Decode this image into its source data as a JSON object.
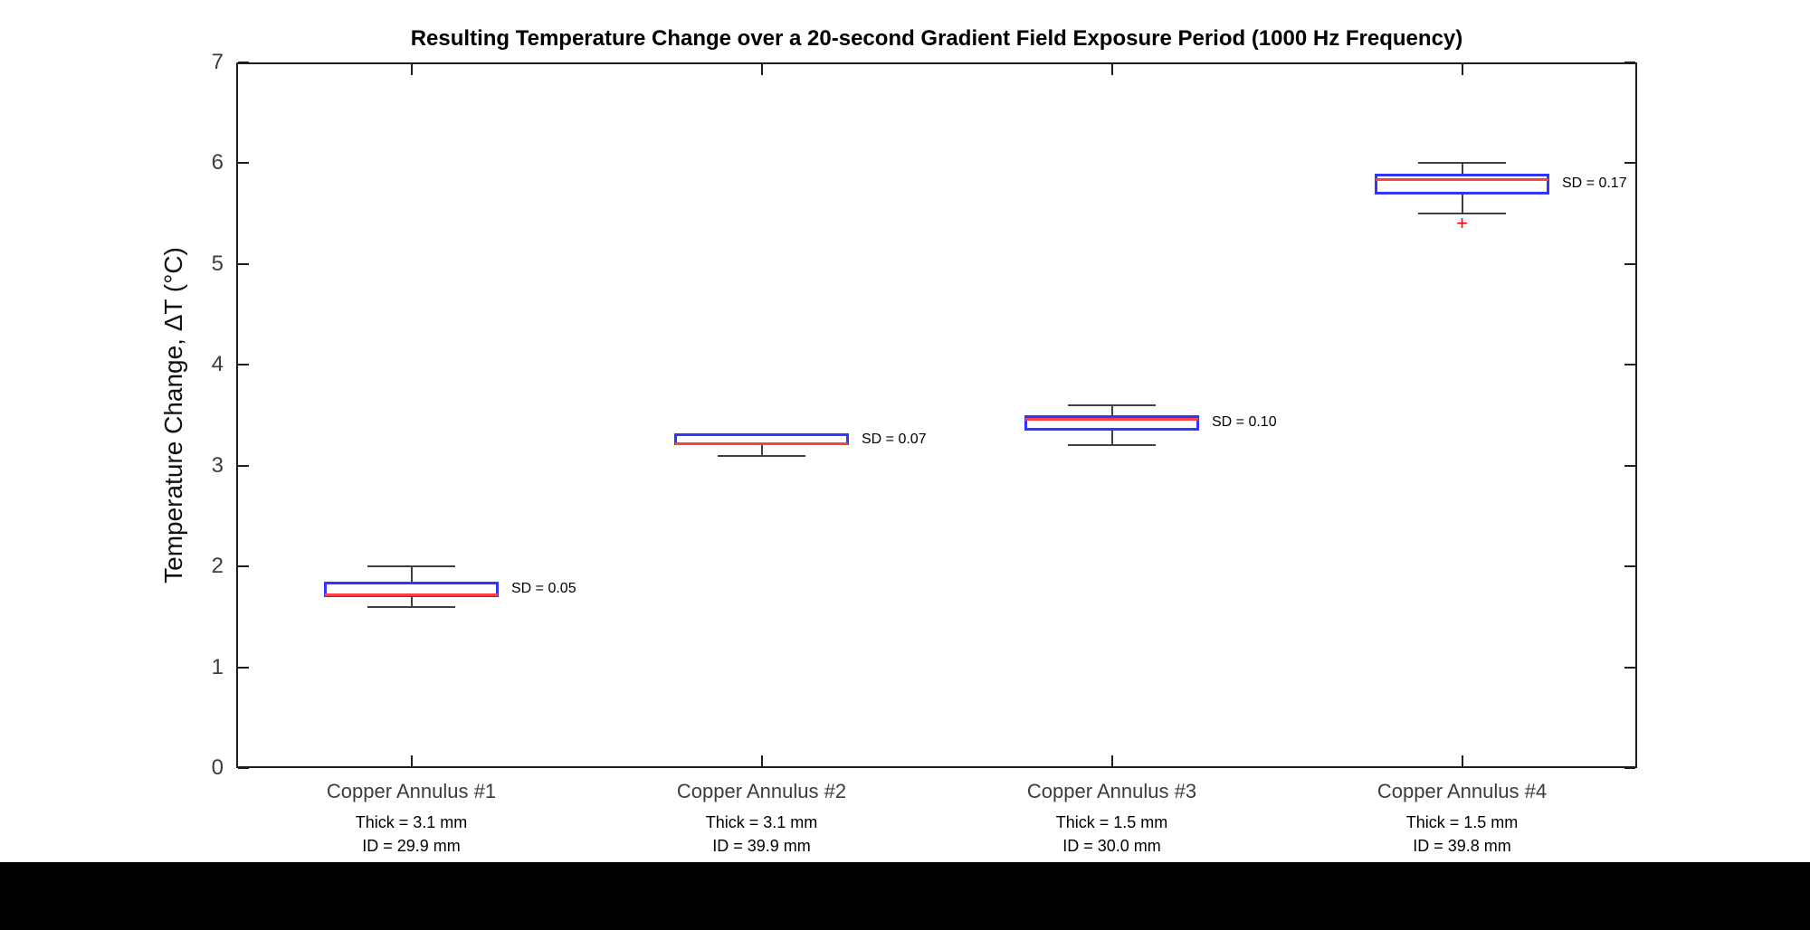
{
  "chart_data": {
    "type": "boxplot",
    "title": "Resulting Temperature Change over a 20-second Gradient Field Exposure Period (1000 Hz Frequency)",
    "ylabel": "Temperature Change, ΔT (°C)",
    "xlabel": "",
    "ylim": [
      0,
      7
    ],
    "yticks": [
      0,
      1,
      2,
      3,
      4,
      5,
      6,
      7
    ],
    "grid": false,
    "legend": "none",
    "style": {
      "box_color": "#3434ff",
      "median_color": "#ff4040",
      "whisker_color": "#404040",
      "outlier_color": "#ff0000",
      "axis_color": "#1f1f1f",
      "background": "#ffffff"
    },
    "categories": [
      {
        "label": "Copper Annulus #1",
        "sub1": "Thick = 3.1 mm",
        "sub2": "ID = 29.9 mm",
        "sd_label": "SD = 0.05",
        "whisker_low": 1.6,
        "q1": 1.7,
        "median": 1.72,
        "q3": 1.85,
        "whisker_high": 2.0,
        "outliers": []
      },
      {
        "label": "Copper Annulus #2",
        "sub1": "Thick = 3.1 mm",
        "sub2": "ID = 39.9 mm",
        "sd_label": "SD = 0.07",
        "whisker_low": 3.1,
        "q1": 3.2,
        "median": 3.22,
        "q3": 3.32,
        "whisker_high": 3.32,
        "outliers": []
      },
      {
        "label": "Copper Annulus #3",
        "sub1": "Thick = 1.5 mm",
        "sub2": "ID = 30.0 mm",
        "sd_label": "SD = 0.10",
        "whisker_low": 3.2,
        "q1": 3.35,
        "median": 3.46,
        "q3": 3.5,
        "whisker_high": 3.6,
        "outliers": []
      },
      {
        "label": "Copper Annulus #4",
        "sub1": "Thick = 1.5 mm",
        "sub2": "ID = 39.8 mm",
        "sd_label": "SD = 0.17",
        "whisker_low": 5.5,
        "q1": 5.69,
        "median": 5.84,
        "q3": 5.9,
        "whisker_high": 6.0,
        "outliers": [
          5.4
        ]
      }
    ],
    "outlier_marker": "+"
  }
}
